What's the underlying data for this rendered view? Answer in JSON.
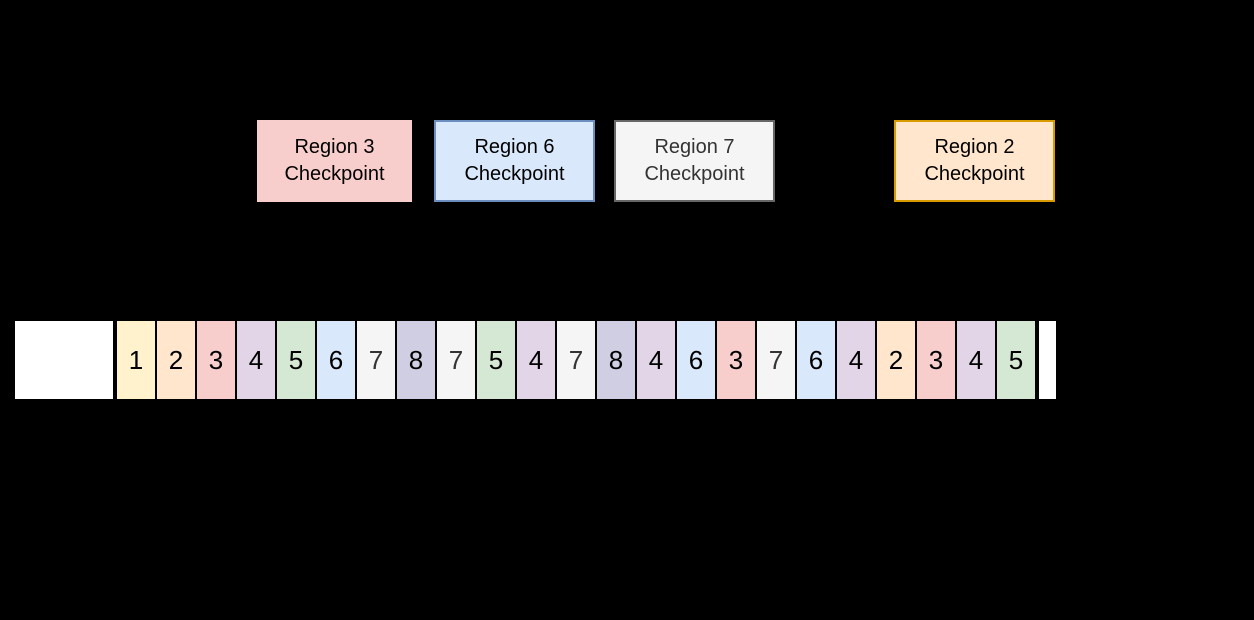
{
  "canvas": {
    "background": "#000000"
  },
  "checkpoints": [
    {
      "title": "Region 3",
      "subtitle": "Checkpoint",
      "fill": "#F8CECC",
      "border": "#F8CECC",
      "text_color": "#000000"
    },
    {
      "title": "Region 6",
      "subtitle": "Checkpoint",
      "fill": "#DAE8FC",
      "border": "#6C8EBF",
      "text_color": "#000000"
    },
    {
      "title": "Region 7",
      "subtitle": "Checkpoint",
      "fill": "#F5F5F5",
      "border": "#666666",
      "text_color": "#333333"
    },
    {
      "title": "Region 2",
      "subtitle": "Checkpoint",
      "fill": "#FFE6CC",
      "border": "#D79B00",
      "text_color": "#000000"
    }
  ],
  "strip": {
    "lead_box_fill": "#FFFFFF",
    "tail_box_fill": "#FFFFFF",
    "cell_border_color": "#000000",
    "cells": [
      {
        "value": "1",
        "fill": "#FFF2CC",
        "text_color": "#000000"
      },
      {
        "value": "2",
        "fill": "#FFE6CC",
        "text_color": "#000000"
      },
      {
        "value": "3",
        "fill": "#F8CECC",
        "text_color": "#000000"
      },
      {
        "value": "4",
        "fill": "#E1D5E7",
        "text_color": "#000000"
      },
      {
        "value": "5",
        "fill": "#D5E8D4",
        "text_color": "#000000"
      },
      {
        "value": "6",
        "fill": "#DAE8FC",
        "text_color": "#000000"
      },
      {
        "value": "7",
        "fill": "#F5F5F5",
        "text_color": "#333333"
      },
      {
        "value": "8",
        "fill": "#CFCEE3",
        "text_color": "#000000"
      },
      {
        "value": "7",
        "fill": "#F5F5F5",
        "text_color": "#333333"
      },
      {
        "value": "5",
        "fill": "#D5E8D4",
        "text_color": "#000000"
      },
      {
        "value": "4",
        "fill": "#E1D5E7",
        "text_color": "#000000"
      },
      {
        "value": "7",
        "fill": "#F5F5F5",
        "text_color": "#333333"
      },
      {
        "value": "8",
        "fill": "#CFCEE3",
        "text_color": "#000000"
      },
      {
        "value": "4",
        "fill": "#E1D5E7",
        "text_color": "#000000"
      },
      {
        "value": "6",
        "fill": "#DAE8FC",
        "text_color": "#000000"
      },
      {
        "value": "3",
        "fill": "#F8CECC",
        "text_color": "#000000"
      },
      {
        "value": "7",
        "fill": "#F5F5F5",
        "text_color": "#333333"
      },
      {
        "value": "6",
        "fill": "#DAE8FC",
        "text_color": "#000000"
      },
      {
        "value": "4",
        "fill": "#E1D5E7",
        "text_color": "#000000"
      },
      {
        "value": "2",
        "fill": "#FFE6CC",
        "text_color": "#000000"
      },
      {
        "value": "3",
        "fill": "#F8CECC",
        "text_color": "#000000"
      },
      {
        "value": "4",
        "fill": "#E1D5E7",
        "text_color": "#000000"
      },
      {
        "value": "5",
        "fill": "#D5E8D4",
        "text_color": "#000000"
      }
    ]
  }
}
